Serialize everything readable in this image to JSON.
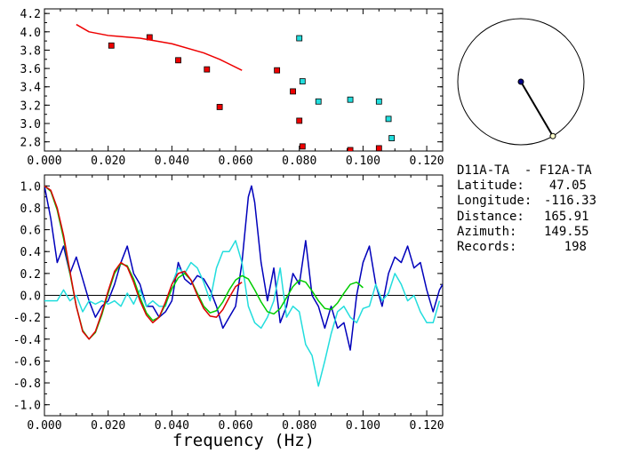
{
  "chart_data": [
    {
      "type": "scatter",
      "xlim": [
        0.0,
        0.125
      ],
      "ylim": [
        2.7,
        4.25
      ],
      "xticks": [
        "0.000",
        "0.020",
        "0.040",
        "0.060",
        "0.080",
        "0.100",
        "0.120"
      ],
      "yticks": [
        "2.8",
        "3.0",
        "3.2",
        "3.4",
        "3.6",
        "3.8",
        "4.0",
        "4.2"
      ],
      "series": [
        {
          "color": "#ee0000",
          "marker": "square",
          "points": [
            [
              0.021,
              3.85
            ],
            [
              0.033,
              3.94
            ],
            [
              0.042,
              3.69
            ],
            [
              0.051,
              3.59
            ],
            [
              0.055,
              3.18
            ],
            [
              0.073,
              3.58
            ],
            [
              0.078,
              3.35
            ],
            [
              0.08,
              3.03
            ],
            [
              0.081,
              2.75
            ],
            [
              0.096,
              2.71
            ],
            [
              0.105,
              2.73
            ]
          ]
        },
        {
          "color": "#22dddd",
          "marker": "square",
          "points": [
            [
              0.08,
              3.93
            ],
            [
              0.081,
              3.46
            ],
            [
              0.086,
              3.24
            ],
            [
              0.096,
              3.26
            ],
            [
              0.105,
              3.24
            ],
            [
              0.108,
              3.05
            ],
            [
              0.109,
              2.84
            ]
          ]
        },
        {
          "color": "#ee0000",
          "type": "line",
          "points": [
            [
              0.01,
              4.08
            ],
            [
              0.014,
              4.0
            ],
            [
              0.02,
              3.96
            ],
            [
              0.03,
              3.93
            ],
            [
              0.04,
              3.87
            ],
            [
              0.05,
              3.77
            ],
            [
              0.055,
              3.7
            ],
            [
              0.062,
              3.58
            ]
          ]
        }
      ]
    },
    {
      "type": "line",
      "xlim": [
        0.0,
        0.125
      ],
      "ylim": [
        -1.1,
        1.1
      ],
      "xlabel": "frequency (Hz)",
      "xticks": [
        "0.000",
        "0.020",
        "0.040",
        "0.060",
        "0.080",
        "0.100",
        "0.120"
      ],
      "yticks": [
        "1.0",
        "0.8",
        "0.6",
        "0.4",
        "0.2",
        "0.0",
        "-0.2",
        "-0.4",
        "-0.6",
        "-0.8",
        "-1.0"
      ],
      "zero_line": true,
      "series": [
        {
          "color": "#0000bb",
          "x": [
            0.0,
            0.002,
            0.004,
            0.006,
            0.008,
            0.01,
            0.012,
            0.014,
            0.016,
            0.018,
            0.02,
            0.022,
            0.024,
            0.026,
            0.028,
            0.03,
            0.032,
            0.034,
            0.036,
            0.038,
            0.04,
            0.042,
            0.044,
            0.046,
            0.048,
            0.05,
            0.052,
            0.054,
            0.056,
            0.058,
            0.06,
            0.062,
            0.064,
            0.065,
            0.066,
            0.068,
            0.07,
            0.072,
            0.074,
            0.076,
            0.078,
            0.08,
            0.082,
            0.084,
            0.086,
            0.088,
            0.09,
            0.092,
            0.094,
            0.096,
            0.098,
            0.1,
            0.102,
            0.104,
            0.106,
            0.108,
            0.11,
            0.112,
            0.114,
            0.116,
            0.118,
            0.12,
            0.122,
            0.124,
            0.125
          ],
          "y": [
            1.0,
            0.7,
            0.3,
            0.45,
            0.2,
            0.35,
            0.15,
            -0.05,
            -0.2,
            -0.1,
            -0.05,
            0.1,
            0.3,
            0.45,
            0.2,
            0.1,
            -0.1,
            -0.1,
            -0.2,
            -0.15,
            -0.05,
            0.3,
            0.15,
            0.1,
            0.18,
            0.15,
            0.05,
            -0.1,
            -0.3,
            -0.2,
            -0.1,
            0.3,
            0.9,
            1.0,
            0.85,
            0.3,
            -0.05,
            0.25,
            -0.25,
            -0.1,
            0.2,
            0.1,
            0.5,
            0.0,
            -0.1,
            -0.3,
            -0.1,
            -0.3,
            -0.25,
            -0.5,
            0.0,
            0.3,
            0.45,
            0.1,
            -0.1,
            0.2,
            0.35,
            0.3,
            0.45,
            0.25,
            0.3,
            0.05,
            -0.15,
            0.05,
            0.1
          ]
        },
        {
          "color": "#22dddd",
          "x": [
            0.0,
            0.002,
            0.004,
            0.006,
            0.008,
            0.01,
            0.012,
            0.014,
            0.016,
            0.018,
            0.02,
            0.022,
            0.024,
            0.026,
            0.028,
            0.03,
            0.032,
            0.034,
            0.036,
            0.038,
            0.04,
            0.042,
            0.044,
            0.046,
            0.048,
            0.05,
            0.052,
            0.054,
            0.056,
            0.058,
            0.06,
            0.062,
            0.064,
            0.066,
            0.068,
            0.07,
            0.072,
            0.074,
            0.076,
            0.078,
            0.08,
            0.082,
            0.084,
            0.086,
            0.088,
            0.09,
            0.092,
            0.094,
            0.096,
            0.098,
            0.1,
            0.102,
            0.104,
            0.106,
            0.108,
            0.11,
            0.112,
            0.114,
            0.116,
            0.118,
            0.12,
            0.122,
            0.124
          ],
          "y": [
            -0.05,
            -0.05,
            -0.05,
            0.05,
            -0.05,
            0.0,
            -0.15,
            -0.05,
            -0.08,
            -0.05,
            -0.08,
            -0.05,
            -0.1,
            0.02,
            -0.08,
            0.05,
            -0.1,
            -0.05,
            -0.1,
            -0.1,
            0.1,
            0.25,
            0.2,
            0.3,
            0.25,
            0.12,
            -0.05,
            0.25,
            0.4,
            0.4,
            0.5,
            0.3,
            -0.1,
            -0.25,
            -0.3,
            -0.2,
            -0.05,
            0.25,
            -0.2,
            -0.1,
            -0.15,
            -0.45,
            -0.55,
            -0.83,
            -0.6,
            -0.35,
            -0.15,
            -0.1,
            -0.2,
            -0.25,
            -0.12,
            -0.1,
            0.1,
            -0.05,
            0.02,
            0.2,
            0.1,
            -0.05,
            0.0,
            -0.15,
            -0.25,
            -0.25,
            -0.05
          ]
        },
        {
          "color": "#00cc00",
          "x": [
            0.0,
            0.002,
            0.004,
            0.006,
            0.008,
            0.01,
            0.012,
            0.014,
            0.016,
            0.018,
            0.02,
            0.022,
            0.024,
            0.026,
            0.028,
            0.03,
            0.032,
            0.034,
            0.036,
            0.038,
            0.04,
            0.042,
            0.044,
            0.046,
            0.048,
            0.05,
            0.052,
            0.054,
            0.056,
            0.058,
            0.06,
            0.062,
            0.064,
            0.066,
            0.068,
            0.07,
            0.072,
            0.074,
            0.076,
            0.078,
            0.08,
            0.082,
            0.084,
            0.086,
            0.088,
            0.09,
            0.092,
            0.094,
            0.096,
            0.098,
            0.1
          ],
          "y": [
            1.0,
            0.95,
            0.78,
            0.52,
            0.2,
            -0.1,
            -0.32,
            -0.4,
            -0.34,
            -0.18,
            0.02,
            0.2,
            0.29,
            0.27,
            0.15,
            -0.02,
            -0.16,
            -0.23,
            -0.2,
            -0.08,
            0.06,
            0.16,
            0.2,
            0.14,
            0.02,
            -0.1,
            -0.16,
            -0.14,
            -0.06,
            0.05,
            0.14,
            0.18,
            0.15,
            0.05,
            -0.06,
            -0.15,
            -0.17,
            -0.12,
            -0.02,
            0.08,
            0.14,
            0.12,
            0.04,
            -0.05,
            -0.12,
            -0.13,
            -0.07,
            0.02,
            0.1,
            0.12,
            0.07
          ]
        },
        {
          "color": "#dd0000",
          "x": [
            0.0,
            0.002,
            0.004,
            0.006,
            0.008,
            0.01,
            0.012,
            0.014,
            0.016,
            0.018,
            0.02,
            0.022,
            0.024,
            0.026,
            0.028,
            0.03,
            0.032,
            0.034,
            0.036,
            0.038,
            0.04,
            0.042,
            0.044,
            0.046,
            0.048,
            0.05,
            0.052,
            0.054,
            0.056,
            0.058,
            0.06,
            0.062
          ],
          "y": [
            1.0,
            0.96,
            0.8,
            0.55,
            0.22,
            -0.1,
            -0.33,
            -0.4,
            -0.33,
            -0.16,
            0.04,
            0.22,
            0.3,
            0.26,
            0.12,
            -0.05,
            -0.18,
            -0.25,
            -0.2,
            -0.06,
            0.1,
            0.2,
            0.22,
            0.14,
            0.0,
            -0.12,
            -0.19,
            -0.2,
            -0.13,
            -0.02,
            0.08,
            0.12
          ]
        }
      ]
    }
  ],
  "map": {
    "station_color": "#000088",
    "event_color": "#ffffcc",
    "path_color": "#000000",
    "azimuth_deg": 149.55
  },
  "info": {
    "pair": "D11A-TA  - F12A-TA",
    "rows": [
      {
        "label": "Latitude:",
        "value": "47.05"
      },
      {
        "label": "Longitude:",
        "value": "-116.33"
      },
      {
        "label": "Distance:",
        "value": "165.91"
      },
      {
        "label": "Azimuth:",
        "value": "149.55"
      },
      {
        "label": "Records:",
        "value": "198"
      }
    ]
  }
}
